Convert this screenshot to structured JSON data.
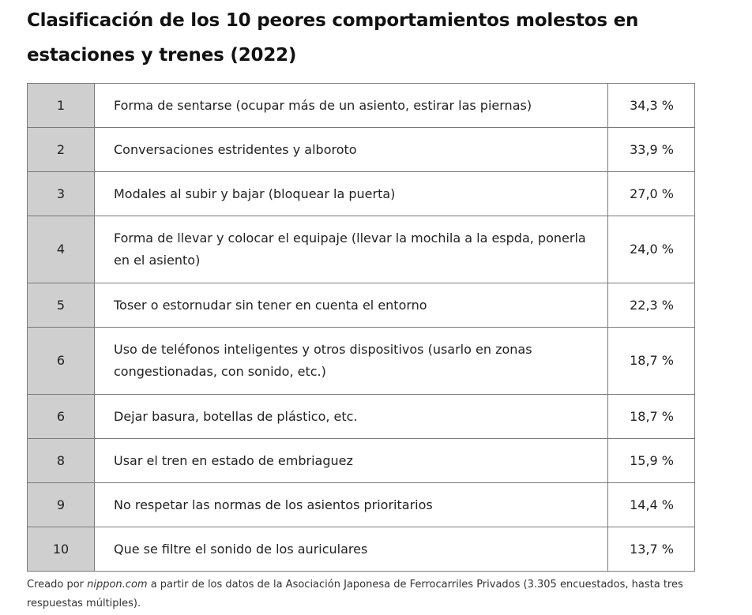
{
  "title": "Clasificación de los 10 peores comportamientos molestos en estaciones y trenes (2022)",
  "rows": [
    {
      "rank": "1",
      "behavior": "Forma de sentarse (ocupar más de un asiento, estirar las piernas)",
      "percent": "34,3 %",
      "lines": 1
    },
    {
      "rank": "2",
      "behavior": "Conversaciones estridentes y alboroto",
      "percent": "33,9 %",
      "lines": 1
    },
    {
      "rank": "3",
      "behavior": "Modales al subir y bajar (bloquear la puerta)",
      "percent": "27,0 %",
      "lines": 1
    },
    {
      "rank": "4",
      "behavior": "Forma de llevar y colocar el equipaje (llevar la mochila a la espda, ponerla en el asiento)",
      "percent": "24,0 %",
      "lines": 2
    },
    {
      "rank": "5",
      "behavior": "Toser o estornudar sin tener en cuenta el entorno",
      "percent": "22,3 %",
      "lines": 1
    },
    {
      "rank": "6",
      "behavior": "Uso de teléfonos inteligentes y otros dispositivos (usarlo en zonas congestionadas, con sonido, etc.)",
      "percent": "18,7 %",
      "lines": 2
    },
    {
      "rank": "6",
      "behavior": "Dejar basura, botellas de plástico, etc.",
      "percent": "18,7 %",
      "lines": 1
    },
    {
      "rank": "8",
      "behavior": "Usar el tren en estado de embriaguez",
      "percent": "15,9 %",
      "lines": 1
    },
    {
      "rank": "9",
      "behavior": "No respetar las normas de los asientos prioritarios",
      "percent": "14,4 %",
      "lines": 1
    },
    {
      "rank": "10",
      "behavior": "Que se filtre el sonido de los auriculares",
      "percent": "13,7 %",
      "lines": 1
    }
  ],
  "source": {
    "prefix": "Creado por ",
    "site": "nippon.com",
    "suffix": " a partir de los datos de la Asociación Japonesa de Ferrocarriles Privados (3.305 encuestados, hasta tres respuestas múltiples)."
  },
  "colors": {
    "rank_cell_bg": "#cfcfcf",
    "border": "#7a7a7a",
    "text": "#222222"
  }
}
